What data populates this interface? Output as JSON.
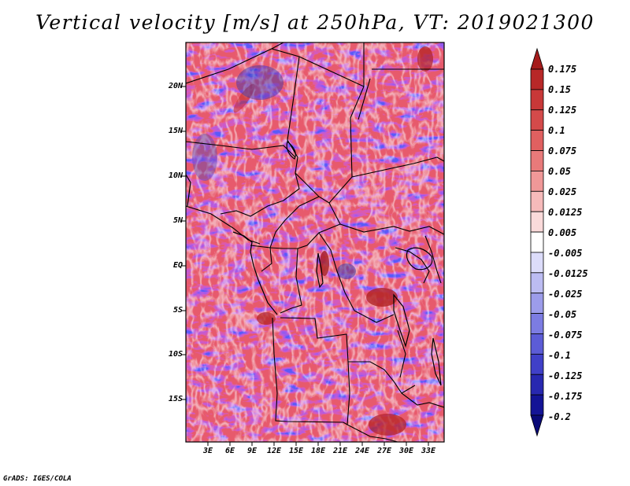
{
  "title": "Vertical velocity [m/s] at 250hPa, VT: 2019021300",
  "credit": "GrADS: IGES/COLA",
  "lat_labels": [
    "20N",
    "15N",
    "10N",
    "5N",
    "EQ",
    "5S",
    "10S",
    "15S"
  ],
  "lon_labels": [
    "3E",
    "6E",
    "9E",
    "12E",
    "15E",
    "18E",
    "21E",
    "24E",
    "27E",
    "30E",
    "33E"
  ],
  "colorbar": {
    "labels": [
      "0.175",
      "0.15",
      "0.125",
      "0.1",
      "0.075",
      "0.05",
      "0.025",
      "0.0125",
      "0.005",
      "-0.005",
      "-0.0125",
      "-0.025",
      "-0.05",
      "-0.075",
      "-0.1",
      "-0.125",
      "-0.175",
      "-0.2"
    ],
    "colors": [
      "#a51c1c",
      "#b82828",
      "#c83838",
      "#d44a4a",
      "#e06060",
      "#e87a7a",
      "#f09898",
      "#f6baba",
      "#fadada",
      "#ffffff",
      "#dcdcfa",
      "#bcbcf2",
      "#9c9cea",
      "#7c7ce2",
      "#5c5cd6",
      "#4040c8",
      "#2828b0",
      "#141496",
      "#0a0a78"
    ]
  }
}
